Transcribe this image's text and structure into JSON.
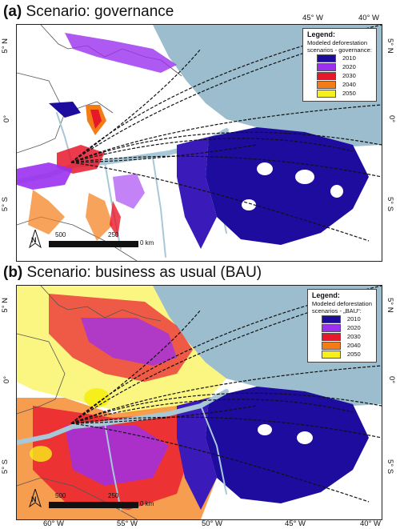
{
  "panels": [
    {
      "letter": "(a)",
      "title": "Scenario: governance",
      "legend": {
        "title": "Legend:",
        "subtitle_line1": "Modeled deforestation",
        "subtitle_line2": "scenarios - governance:",
        "items": [
          {
            "label": "2010",
            "color": "#1d0c9e"
          },
          {
            "label": "2020",
            "color": "#9b30f0"
          },
          {
            "label": "2030",
            "color": "#e8182b"
          },
          {
            "label": "2040",
            "color": "#f47c16"
          },
          {
            "label": "2050",
            "color": "#f7ef1c"
          }
        ]
      },
      "scale": {
        "left": "500",
        "mid": "250",
        "right": "0 km"
      },
      "north": "N"
    },
    {
      "letter": "(b)",
      "title": "Scenario: business as usual (BAU)",
      "legend": {
        "title": "Legend:",
        "subtitle_line1": "Modeled deforestation",
        "subtitle_line2": "scenarios - „BAU“:",
        "items": [
          {
            "label": "2010",
            "color": "#1d0c9e"
          },
          {
            "label": "2020",
            "color": "#9b30f0"
          },
          {
            "label": "2030",
            "color": "#e8182b"
          },
          {
            "label": "2040",
            "color": "#f47c16"
          },
          {
            "label": "2050",
            "color": "#f7ef1c"
          }
        ]
      },
      "scale": {
        "left": "500",
        "mid": "250",
        "right": "0 km"
      },
      "north": "N"
    }
  ],
  "axes": {
    "top_lon": [
      "45° W",
      "40° W"
    ],
    "lat_left": [
      "5° N",
      "0°",
      "5° S"
    ],
    "lat_right": [
      "5° N",
      "0°",
      "5° S"
    ],
    "bottom_lon": [
      "60° W",
      "55° W",
      "50° W",
      "45° W",
      "40° W"
    ]
  },
  "colors": {
    "ocean": "#9bbdcd",
    "river": "#a8c8d8",
    "land": "#ffffff",
    "border": "#555555"
  }
}
